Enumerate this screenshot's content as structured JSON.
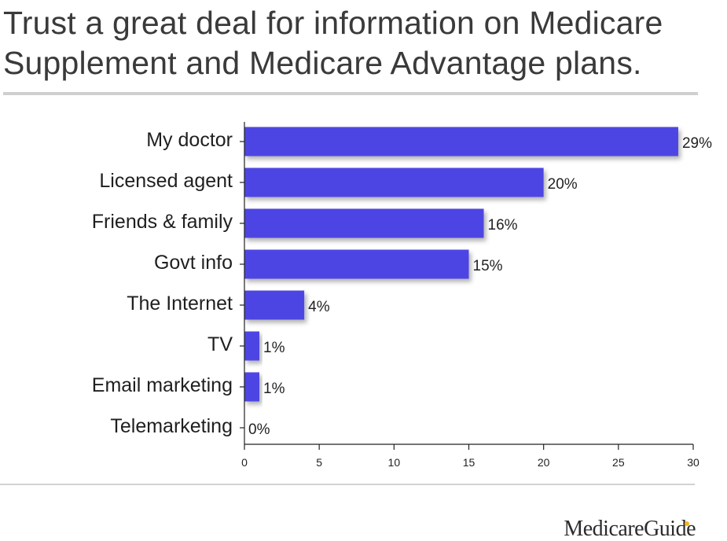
{
  "page": {
    "brand": "MedicareGuide"
  },
  "chart_data": {
    "type": "bar",
    "orientation": "horizontal",
    "title": "Trust a great deal for information on Medicare Supplement and Medicare Advantage plans.",
    "categories": [
      "My doctor",
      "Licensed agent",
      "Friends & family",
      "Govt info",
      "The Internet",
      "TV",
      "Email marketing",
      "Telemarketing"
    ],
    "values": [
      29,
      20,
      16,
      15,
      4,
      1,
      1,
      0
    ],
    "value_labels": [
      "29%",
      "20%",
      "16%",
      "15%",
      "4%",
      "1%",
      "1%",
      "0%"
    ],
    "xticks": [
      0,
      5,
      10,
      15,
      20,
      25,
      30
    ],
    "xlim": [
      0,
      30
    ],
    "xlabel": "",
    "ylabel": "",
    "grid": false,
    "legend": "none",
    "colors": {
      "bar": "#4e45e3",
      "axis": "#222222",
      "text": "#1f1f1f",
      "title": "#3a3a3a",
      "rule": "#cfcfcf",
      "brand_accent": "#f2b51c"
    }
  }
}
